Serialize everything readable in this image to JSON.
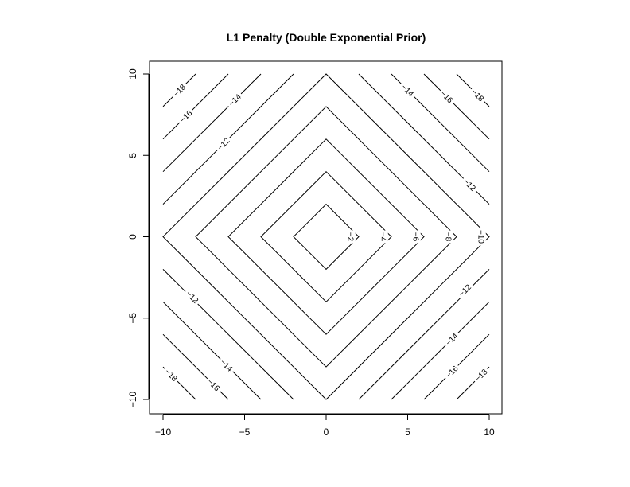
{
  "chart_data": {
    "type": "contour",
    "title": "L1 Penalty (Double Exponential Prior)",
    "xlabel": "",
    "ylabel": "",
    "function": "z = -(|x| + |y|)",
    "xlim": [
      -10,
      10
    ],
    "ylim": [
      -10,
      10
    ],
    "x_ticks": [
      -10,
      -5,
      0,
      5,
      10
    ],
    "y_ticks": [
      -10,
      -5,
      0,
      5,
      10
    ],
    "x_tick_labels": [
      "−10",
      "−5",
      "0",
      "5",
      "10"
    ],
    "y_tick_labels": [
      "−10",
      "−5",
      "0",
      "5",
      "10"
    ],
    "grid": false,
    "levels": [
      -2,
      -4,
      -6,
      -8,
      -10,
      -12,
      -14,
      -16,
      -18
    ],
    "contour_labels": [
      {
        "text": "−2",
        "x": 1.5,
        "y": 0
      },
      {
        "text": "−4",
        "x": 3.5,
        "y": 0
      },
      {
        "text": "−6",
        "x": 5.5,
        "y": 0
      },
      {
        "text": "−8",
        "x": 7.5,
        "y": 0
      },
      {
        "text": "−10",
        "x": 9.5,
        "y": 0
      },
      {
        "text": "−12",
        "x": -6.3,
        "y": 5.7
      },
      {
        "text": "−12",
        "x": 8.8,
        "y": 3.2
      },
      {
        "text": "−12",
        "x": -8.2,
        "y": -3.7
      },
      {
        "text": "−12",
        "x": 8.5,
        "y": -3.3
      },
      {
        "text": "−14",
        "x": -5.6,
        "y": 8.4
      },
      {
        "text": "−14",
        "x": 5,
        "y": 9
      },
      {
        "text": "−14",
        "x": -6.1,
        "y": -7.9
      },
      {
        "text": "−14",
        "x": 7.7,
        "y": -6.3
      },
      {
        "text": "−16",
        "x": -8.6,
        "y": 7.4
      },
      {
        "text": "−16",
        "x": 7.4,
        "y": 8.6
      },
      {
        "text": "−16",
        "x": -6.9,
        "y": -9.1
      },
      {
        "text": "−16",
        "x": 7.7,
        "y": -8.3
      },
      {
        "text": "−18",
        "x": -9,
        "y": 9
      },
      {
        "text": "−18",
        "x": 9.3,
        "y": 8.7
      },
      {
        "text": "−18",
        "x": -9.5,
        "y": -8.5
      },
      {
        "text": "−18",
        "x": 9.5,
        "y": -8.5
      }
    ]
  }
}
